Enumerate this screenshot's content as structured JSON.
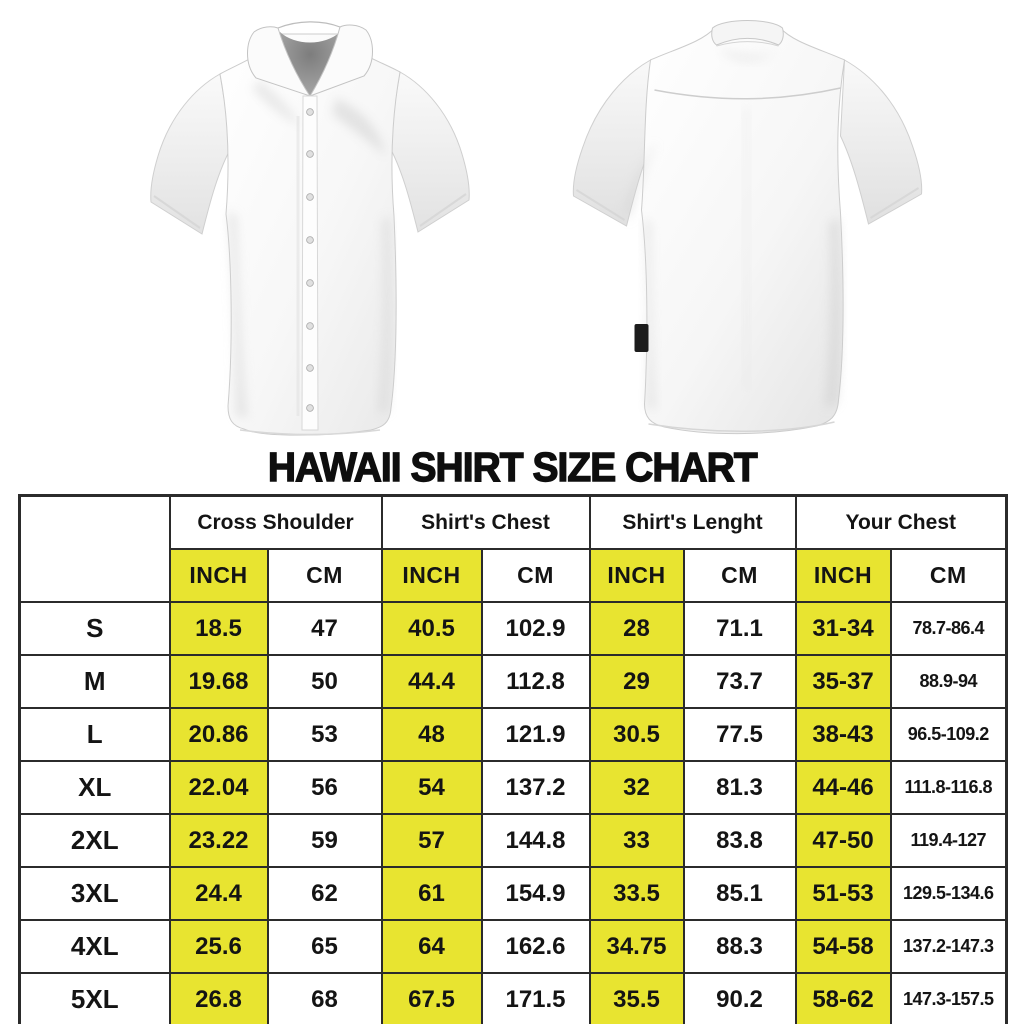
{
  "title": "HAWAII SHIRT SIZE CHART",
  "figures": {
    "front_shirt": "white short-sleeve button-up shirt, front view",
    "back_shirt": "white short-sleeve button-up shirt, back view with black hem tag"
  },
  "table": {
    "corner_label": "",
    "groups": [
      "Cross Shoulder",
      "Shirt's Chest",
      "Shirt's Lenght",
      "Your Chest"
    ],
    "units": {
      "inch": "INCH",
      "cm": "CM"
    },
    "rows": [
      {
        "size": "S",
        "values": [
          "18.5",
          "47",
          "40.5",
          "102.9",
          "28",
          "71.1",
          "31-34",
          "78.7-86.4"
        ]
      },
      {
        "size": "M",
        "values": [
          "19.68",
          "50",
          "44.4",
          "112.8",
          "29",
          "73.7",
          "35-37",
          "88.9-94"
        ]
      },
      {
        "size": "L",
        "values": [
          "20.86",
          "53",
          "48",
          "121.9",
          "30.5",
          "77.5",
          "38-43",
          "96.5-109.2"
        ]
      },
      {
        "size": "XL",
        "values": [
          "22.04",
          "56",
          "54",
          "137.2",
          "32",
          "81.3",
          "44-46",
          "111.8-116.8"
        ]
      },
      {
        "size": "2XL",
        "values": [
          "23.22",
          "59",
          "57",
          "144.8",
          "33",
          "83.8",
          "47-50",
          "119.4-127"
        ]
      },
      {
        "size": "3XL",
        "values": [
          "24.4",
          "62",
          "61",
          "154.9",
          "33.5",
          "85.1",
          "51-53",
          "129.5-134.6"
        ]
      },
      {
        "size": "4XL",
        "values": [
          "25.6",
          "65",
          "64",
          "162.6",
          "34.75",
          "88.3",
          "54-58",
          "137.2-147.3"
        ]
      },
      {
        "size": "5XL",
        "values": [
          "26.8",
          "68",
          "67.5",
          "171.5",
          "35.5",
          "90.2",
          "58-62",
          "147.3-157.5"
        ]
      }
    ]
  },
  "colors": {
    "highlight_yellow": "#e8e430",
    "border_dark": "#2b2b2b",
    "text_black": "#141414",
    "background": "#ffffff"
  }
}
